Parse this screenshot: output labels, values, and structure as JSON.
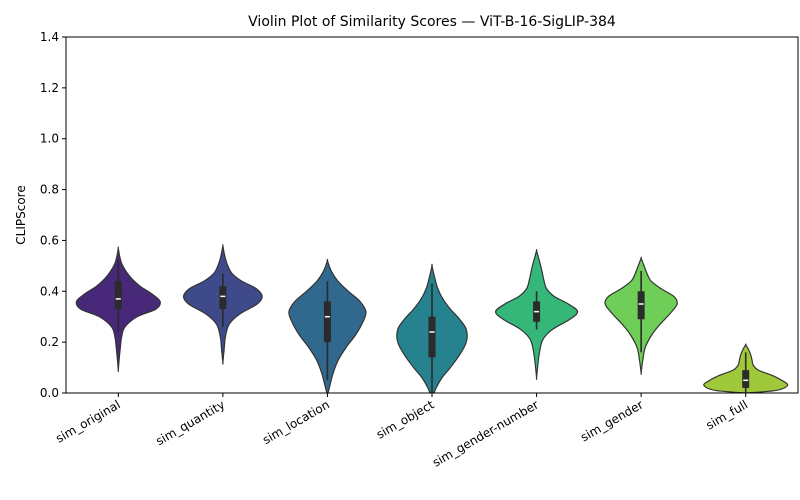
{
  "chart_data": {
    "type": "violin",
    "title": "Violin Plot of Similarity Scores — ViT-B-16-SigLIP-384",
    "xlabel": "",
    "ylabel": "CLIPScore",
    "ylim": [
      0,
      1.4
    ],
    "yticks": [
      "0.0",
      "0.2",
      "0.4",
      "0.6",
      "0.8",
      "1.0",
      "1.2",
      "1.4"
    ],
    "grid": false,
    "palette": "viridis",
    "series": [
      {
        "name": "sim_original",
        "color": "#482878",
        "q1": 0.33,
        "median": 0.37,
        "q3": 0.44,
        "whisker_low": 0.24,
        "whisker_high": 0.52,
        "density": [
          [
            0.09,
            0.0
          ],
          [
            0.13,
            0.02
          ],
          [
            0.18,
            0.05
          ],
          [
            0.22,
            0.08
          ],
          [
            0.26,
            0.16
          ],
          [
            0.3,
            0.45
          ],
          [
            0.33,
            0.9
          ],
          [
            0.36,
            1.0
          ],
          [
            0.39,
            0.8
          ],
          [
            0.42,
            0.52
          ],
          [
            0.45,
            0.32
          ],
          [
            0.48,
            0.18
          ],
          [
            0.51,
            0.08
          ],
          [
            0.54,
            0.03
          ],
          [
            0.57,
            0.0
          ]
        ]
      },
      {
        "name": "sim_quantity",
        "color": "#3e4a89",
        "q1": 0.33,
        "median": 0.38,
        "q3": 0.42,
        "whisker_low": 0.26,
        "whisker_high": 0.47,
        "density": [
          [
            0.12,
            0.0
          ],
          [
            0.17,
            0.03
          ],
          [
            0.22,
            0.06
          ],
          [
            0.27,
            0.15
          ],
          [
            0.31,
            0.4
          ],
          [
            0.35,
            0.82
          ],
          [
            0.38,
            0.94
          ],
          [
            0.41,
            0.8
          ],
          [
            0.44,
            0.45
          ],
          [
            0.47,
            0.22
          ],
          [
            0.5,
            0.12
          ],
          [
            0.53,
            0.06
          ],
          [
            0.56,
            0.02
          ],
          [
            0.58,
            0.0
          ]
        ]
      },
      {
        "name": "sim_location",
        "color": "#31688e",
        "q1": 0.2,
        "median": 0.3,
        "q3": 0.36,
        "whisker_low": 0.05,
        "whisker_high": 0.44,
        "density": [
          [
            -0.01,
            0.0
          ],
          [
            0.03,
            0.06
          ],
          [
            0.08,
            0.14
          ],
          [
            0.13,
            0.26
          ],
          [
            0.18,
            0.45
          ],
          [
            0.23,
            0.68
          ],
          [
            0.28,
            0.85
          ],
          [
            0.32,
            0.92
          ],
          [
            0.36,
            0.78
          ],
          [
            0.4,
            0.5
          ],
          [
            0.44,
            0.25
          ],
          [
            0.48,
            0.09
          ],
          [
            0.52,
            0.0
          ]
        ]
      },
      {
        "name": "sim_object",
        "color": "#26828e",
        "q1": 0.14,
        "median": 0.24,
        "q3": 0.3,
        "whisker_low": 0.0,
        "whisker_high": 0.43,
        "density": [
          [
            -0.02,
            0.0
          ],
          [
            0.02,
            0.1
          ],
          [
            0.06,
            0.24
          ],
          [
            0.1,
            0.44
          ],
          [
            0.15,
            0.66
          ],
          [
            0.2,
            0.82
          ],
          [
            0.25,
            0.82
          ],
          [
            0.29,
            0.66
          ],
          [
            0.33,
            0.44
          ],
          [
            0.37,
            0.26
          ],
          [
            0.41,
            0.14
          ],
          [
            0.45,
            0.07
          ],
          [
            0.5,
            0.0
          ]
        ]
      },
      {
        "name": "sim_gender-number",
        "color": "#35b779",
        "q1": 0.28,
        "median": 0.32,
        "q3": 0.36,
        "whisker_low": 0.25,
        "whisker_high": 0.4,
        "density": [
          [
            0.06,
            0.0
          ],
          [
            0.11,
            0.03
          ],
          [
            0.16,
            0.07
          ],
          [
            0.21,
            0.15
          ],
          [
            0.25,
            0.38
          ],
          [
            0.29,
            0.8
          ],
          [
            0.32,
            0.98
          ],
          [
            0.35,
            0.76
          ],
          [
            0.38,
            0.42
          ],
          [
            0.41,
            0.24
          ],
          [
            0.44,
            0.18
          ],
          [
            0.47,
            0.14
          ],
          [
            0.5,
            0.1
          ],
          [
            0.53,
            0.05
          ],
          [
            0.56,
            0.0
          ]
        ]
      },
      {
        "name": "sim_gender",
        "color": "#6ece58",
        "q1": 0.29,
        "median": 0.35,
        "q3": 0.4,
        "whisker_low": 0.16,
        "whisker_high": 0.48,
        "density": [
          [
            0.08,
            0.0
          ],
          [
            0.13,
            0.04
          ],
          [
            0.18,
            0.1
          ],
          [
            0.23,
            0.26
          ],
          [
            0.27,
            0.45
          ],
          [
            0.31,
            0.68
          ],
          [
            0.35,
            0.86
          ],
          [
            0.38,
            0.78
          ],
          [
            0.41,
            0.48
          ],
          [
            0.44,
            0.24
          ],
          [
            0.47,
            0.14
          ],
          [
            0.5,
            0.07
          ],
          [
            0.53,
            0.0
          ]
        ]
      },
      {
        "name": "sim_full",
        "color": "#9fc83a",
        "q1": 0.02,
        "median": 0.05,
        "q3": 0.09,
        "whisker_low": 0.0,
        "whisker_high": 0.16,
        "density": [
          [
            0.0,
            0.0
          ],
          [
            0.01,
            0.72
          ],
          [
            0.03,
            1.0
          ],
          [
            0.05,
            0.86
          ],
          [
            0.07,
            0.62
          ],
          [
            0.09,
            0.3
          ],
          [
            0.11,
            0.18
          ],
          [
            0.13,
            0.15
          ],
          [
            0.15,
            0.12
          ],
          [
            0.17,
            0.07
          ],
          [
            0.19,
            0.0
          ]
        ]
      }
    ]
  }
}
